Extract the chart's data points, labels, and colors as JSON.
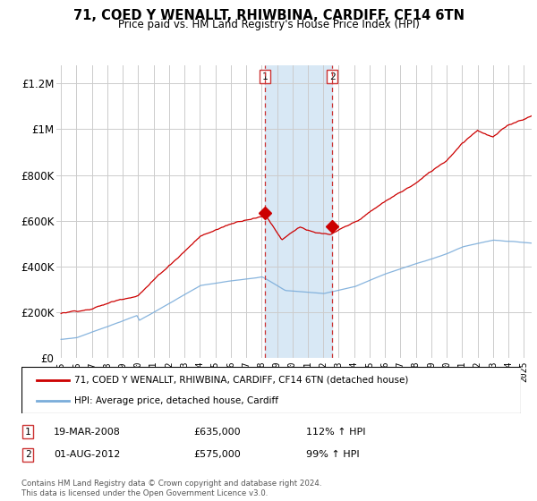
{
  "title": "71, COED Y WENALLT, RHIWBINA, CARDIFF, CF14 6TN",
  "subtitle": "Price paid vs. HM Land Registry's House Price Index (HPI)",
  "legend_line1": "71, COED Y WENALLT, RHIWBINA, CARDIFF, CF14 6TN (detached house)",
  "legend_line2": "HPI: Average price, detached house, Cardiff",
  "transaction1_date": "19-MAR-2008",
  "transaction1_price": "£635,000",
  "transaction1_hpi": "112% ↑ HPI",
  "transaction2_date": "01-AUG-2012",
  "transaction2_price": "£575,000",
  "transaction2_hpi": "99% ↑ HPI",
  "footer": "Contains HM Land Registry data © Crown copyright and database right 2024.\nThis data is licensed under the Open Government Licence v3.0.",
  "red_color": "#cc0000",
  "blue_color": "#7aacda",
  "shade_color": "#d8e8f5",
  "vline_color": "#cc3333",
  "grid_color": "#cccccc",
  "sale1_year": 2008.21,
  "sale1_price": 635000,
  "sale2_year": 2012.58,
  "sale2_price": 575000,
  "vline1_x": 2008.21,
  "vline2_x": 2012.58,
  "ylim_max": 1280000,
  "yticks": [
    0,
    200000,
    400000,
    600000,
    800000,
    1000000,
    1200000
  ],
  "ytick_labels": [
    "£0",
    "£200K",
    "£400K",
    "£600K",
    "£800K",
    "£1M",
    "£1.2M"
  ],
  "xmin": 1994.7,
  "xmax": 2025.5,
  "xticks": [
    1995,
    1996,
    1997,
    1998,
    1999,
    2000,
    2001,
    2002,
    2003,
    2004,
    2005,
    2006,
    2007,
    2008,
    2009,
    2010,
    2011,
    2012,
    2013,
    2014,
    2015,
    2016,
    2017,
    2018,
    2019,
    2020,
    2021,
    2022,
    2023,
    2024,
    2025
  ]
}
